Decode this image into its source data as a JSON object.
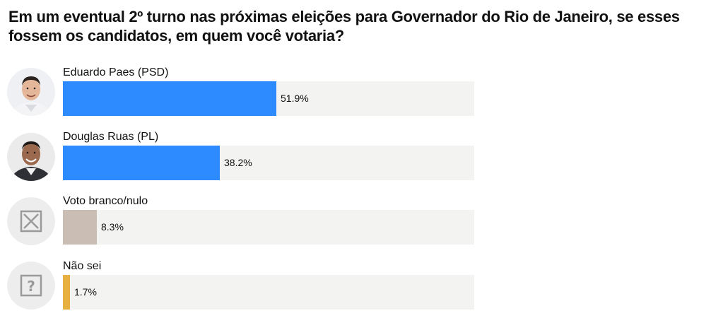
{
  "chart_data": {
    "type": "bar",
    "orientation": "horizontal",
    "title": "Em um eventual 2º turno nas próximas eleições para Governador do Rio de Janeiro, se esses fossem os candidatos, em quem você votaria?",
    "categories": [
      "Eduardo Paes (PSD)",
      "Douglas Ruas (PL)",
      "Voto branco/nulo",
      "Não sei"
    ],
    "values": [
      51.9,
      38.2,
      8.3,
      1.7
    ],
    "value_labels": [
      "51.9%",
      "38.2%",
      "8.3%",
      "1.7%"
    ],
    "xlim": [
      0,
      100
    ],
    "unit": "%",
    "grid": false,
    "legend": "none",
    "colors": [
      "#2d8bff",
      "#2d8bff",
      "#c9bdb4",
      "#e8b040"
    ],
    "track_color": "#f3f3f1",
    "icons": [
      "photo-eduardo-paes",
      "photo-douglas-ruas",
      "x-box-icon",
      "question-box-icon"
    ]
  }
}
